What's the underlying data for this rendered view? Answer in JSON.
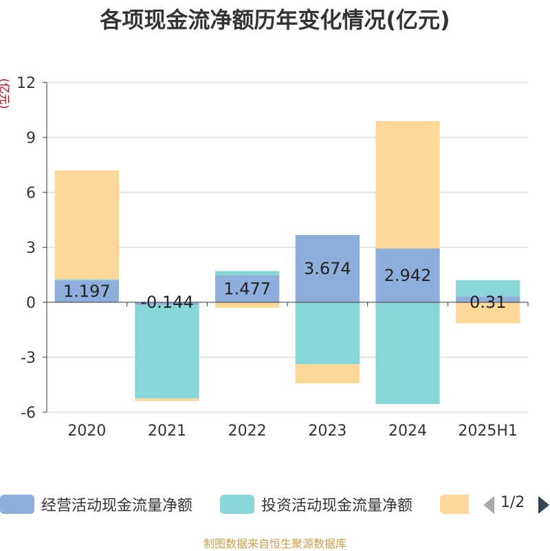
{
  "chart_data": {
    "type": "bar",
    "stacked": true,
    "title": "各项现金流净额历年变化情况(亿元)",
    "y_unit": "(亿元)",
    "categories": [
      "2020",
      "2021",
      "2022",
      "2023",
      "2024",
      "2025H1"
    ],
    "ylim": [
      -6,
      12
    ],
    "yticks": [
      12,
      9,
      6,
      3,
      0,
      -3,
      -6
    ],
    "ytick_labels": [
      "12",
      "9",
      "6",
      "3",
      "0",
      "-3",
      "-6"
    ],
    "grid": true,
    "legend_position": "bottom",
    "series": [
      {
        "name": "经营活动现金流量净额",
        "color": "#8eaedb",
        "values": [
          1.197,
          -0.144,
          1.477,
          3.674,
          2.942,
          0.31
        ],
        "labels": [
          "1.197",
          "-0.144",
          "1.477",
          "3.674",
          "2.942",
          "0.31"
        ]
      },
      {
        "name": "投资活动现金流量净额",
        "color": "#88d6d8",
        "values": [
          0.05,
          -5.1,
          0.23,
          -3.38,
          -5.55,
          0.9
        ]
      },
      {
        "name": "",
        "color": "#fdd899",
        "values": [
          5.95,
          -0.15,
          -0.3,
          -1.05,
          6.95,
          -1.15
        ]
      }
    ]
  },
  "legend": {
    "items": [
      {
        "label": "经营活动现金流量净额",
        "color": "#8eaedb"
      },
      {
        "label": "投资活动现金流量净额",
        "color": "#88d6d8"
      },
      {
        "label": "",
        "color": "#fdd899"
      }
    ],
    "page": "1/2"
  },
  "source_note": "制图数据来自恒生聚源数据库"
}
